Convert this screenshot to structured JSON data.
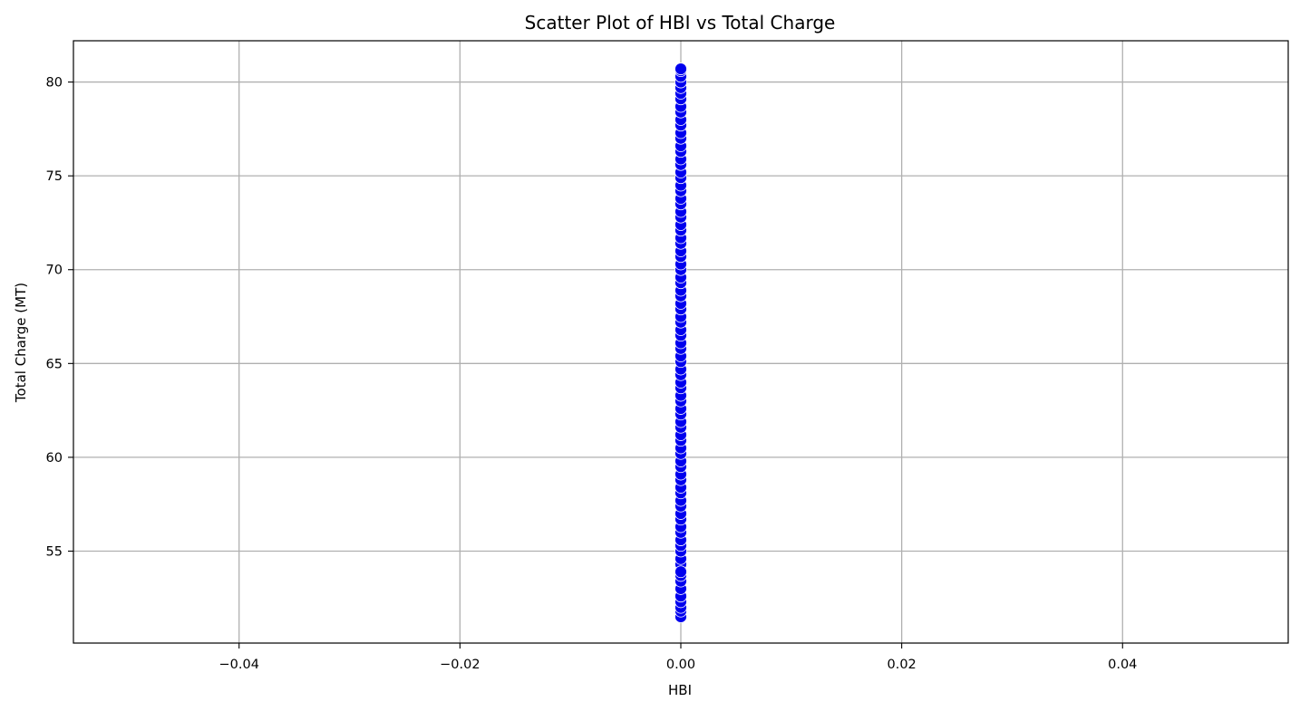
{
  "chart_data": {
    "type": "scatter",
    "title": "Scatter Plot of HBI vs Total Charge",
    "xlabel": "HBI",
    "ylabel": "Total Charge (MT)",
    "xlim": [
      -0.055,
      0.055
    ],
    "ylim": [
      50.1,
      82.2
    ],
    "xticks": [
      -0.04,
      -0.02,
      0.0,
      0.02,
      0.04
    ],
    "xtick_labels": [
      "−0.04",
      "−0.02",
      "0.00",
      "0.02",
      "0.04"
    ],
    "yticks": [
      55,
      60,
      65,
      70,
      75,
      80
    ],
    "ytick_labels": [
      "55",
      "60",
      "65",
      "70",
      "75",
      "80"
    ],
    "grid": true,
    "marker_color": "#0000ee",
    "marker_edge_color": "#ffffff",
    "series": [
      {
        "x": [
          0,
          0,
          0,
          0,
          0,
          0,
          0,
          0,
          0,
          0,
          0,
          0,
          0,
          0,
          0,
          0,
          0,
          0,
          0,
          0,
          0,
          0,
          0,
          0,
          0,
          0,
          0,
          0,
          0,
          0,
          0,
          0,
          0,
          0,
          0,
          0,
          0,
          0,
          0,
          0,
          0,
          0,
          0,
          0,
          0,
          0,
          0,
          0,
          0,
          0,
          0,
          0,
          0,
          0,
          0,
          0,
          0,
          0,
          0,
          0,
          0,
          0,
          0,
          0,
          0,
          0,
          0,
          0,
          0,
          0,
          0,
          0,
          0,
          0,
          0,
          0,
          0,
          0,
          0,
          0,
          0,
          0,
          0,
          0,
          0,
          0,
          0,
          0
        ],
        "y": [
          51.5,
          51.8,
          52.0,
          52.3,
          52.6,
          53.0,
          53.4,
          53.7,
          54.0,
          54.3,
          54.6,
          55.0,
          55.3,
          55.6,
          56.0,
          56.3,
          56.7,
          57.0,
          57.4,
          57.7,
          58.1,
          58.4,
          58.8,
          59.1,
          59.5,
          59.8,
          60.2,
          60.5,
          60.9,
          61.2,
          61.6,
          61.9,
          62.3,
          62.6,
          63.0,
          63.3,
          63.7,
          64.0,
          64.4,
          64.7,
          65.1,
          65.4,
          65.8,
          66.1,
          66.5,
          66.8,
          67.2,
          67.5,
          67.9,
          68.2,
          68.6,
          68.9,
          69.3,
          69.6,
          70.0,
          70.3,
          70.7,
          71.0,
          71.4,
          71.7,
          72.1,
          72.4,
          72.8,
          73.1,
          73.5,
          73.8,
          74.2,
          74.5,
          74.9,
          75.2,
          75.6,
          75.9,
          76.3,
          76.6,
          77.0,
          77.3,
          77.7,
          78.0,
          78.4,
          78.7,
          79.1,
          79.4,
          79.7,
          80.0,
          80.3,
          80.6,
          80.7,
          53.9
        ]
      }
    ]
  }
}
